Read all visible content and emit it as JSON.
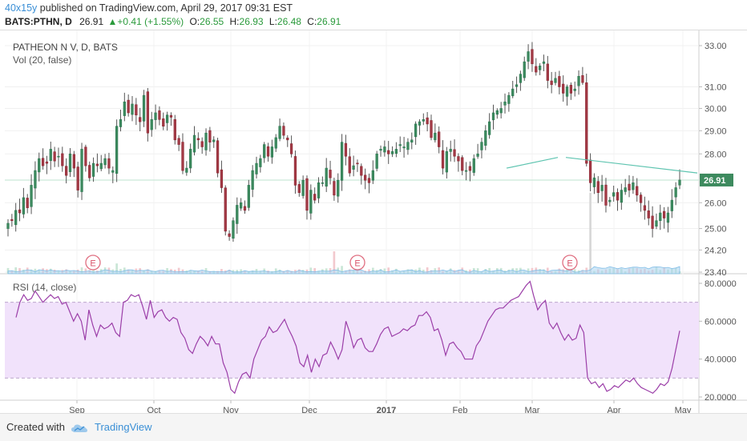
{
  "header": {
    "user": "40x15y",
    "published_text": " published on TradingView.com, April 29, 2017 09:31 EST",
    "symbol": "BATS:PTHN, D",
    "last": "26.91",
    "change": "+0.41 (+1.55%)",
    "open_label": "O:",
    "open": "26.55",
    "high_label": "H:",
    "high": "26.93",
    "low_label": "L:",
    "low": "26.48",
    "close_label": "C:",
    "close": "26.91"
  },
  "footer": {
    "created_with": "Created with",
    "brand": "TradingView"
  },
  "chart_data": [
    {
      "type": "candlestick",
      "title": "PATHEON N V, D, BATS",
      "volume_label": "Vol (20, false)",
      "y_ticks": [
        23.4,
        24.2,
        25.0,
        26.0,
        28.0,
        29.0,
        30.0,
        31.0,
        33.0
      ],
      "ylim": [
        23.4,
        33.0
      ],
      "scale": "log",
      "last_price": 26.91,
      "x_ticks": [
        "Sep",
        "Oct",
        "Nov",
        "Dec",
        "2017",
        "Feb",
        "Mar",
        "Apr",
        "May"
      ],
      "earnings_markers": [
        "E",
        "E",
        "E"
      ],
      "trendline_start": 27.4,
      "trendline_end": 27.85,
      "resistance_start": 27.85,
      "resistance_end": 27.2,
      "closes": [
        25.2,
        25.3,
        25.7,
        25.6,
        26.2,
        25.8,
        26.7,
        27.3,
        27.8,
        27.5,
        27.6,
        28.2,
        27.7,
        27.9,
        27.5,
        27.1,
        28.0,
        27.4,
        26.5,
        28.2,
        27.5,
        27.0,
        27.6,
        27.5,
        27.6,
        27.8,
        27.4,
        27.3,
        29.2,
        29.5,
        30.3,
        29.8,
        30.2,
        29.7,
        29.4,
        30.6,
        28.9,
        29.5,
        29.8,
        29.5,
        29.2,
        29.7,
        29.6,
        28.6,
        28.4,
        27.3,
        27.4,
        28.2,
        28.8,
        28.6,
        28.3,
        28.9,
        28.5,
        28.6,
        27.2,
        26.6,
        24.9,
        24.7,
        25.3,
        25.9,
        26.0,
        25.7,
        26.7,
        27.3,
        27.6,
        27.8,
        28.4,
        27.9,
        28.3,
        28.7,
        29.2,
        28.8,
        28.6,
        28.0,
        26.7,
        26.4,
        26.9,
        25.7,
        26.5,
        26.1,
        26.8,
        26.8,
        27.4,
        27.0,
        26.3,
        26.9,
        28.5,
        27.9,
        27.2,
        27.5,
        27.6,
        27.1,
        26.9,
        26.8,
        27.3,
        28.0,
        28.2,
        28.3,
        28.0,
        28.1,
        28.2,
        28.4,
        28.3,
        28.5,
        28.6,
        29.3,
        29.4,
        29.5,
        29.3,
        28.7,
        28.9,
        28.3,
        27.4,
        28.1,
        28.2,
        27.9,
        27.7,
        27.3,
        27.3,
        27.3,
        27.8,
        28.0,
        28.5,
        29.0,
        29.4,
        29.8,
        29.9,
        30.0,
        30.3,
        30.6,
        30.9,
        31.1,
        31.6,
        32.2,
        32.7,
        32.1,
        31.7,
        32.0,
        32.2,
        31.3,
        31.1,
        31.4,
        31.0,
        30.7,
        31.0,
        30.7,
        30.9,
        31.5,
        31.2,
        27.6,
        26.8,
        27.0,
        26.4,
        26.7,
        25.9,
        26.1,
        26.4,
        26.1,
        26.5,
        26.6,
        26.5,
        26.8,
        26.3,
        26.0,
        25.7,
        25.4,
        25.0,
        25.3,
        25.6,
        25.4,
        25.6,
        26.1,
        26.6,
        26.91
      ],
      "rsi": {
        "label": "RSI (14, close)",
        "y_ticks": [
          20.0,
          40.0,
          60.0,
          80.0
        ],
        "ylim": [
          18,
          83
        ],
        "band": [
          30,
          70
        ],
        "values": [
          62,
          70,
          74,
          71,
          72,
          76,
          73,
          70,
          72,
          74,
          72,
          73,
          69,
          70,
          65,
          60,
          64,
          60,
          50,
          66,
          58,
          52,
          58,
          56,
          57,
          59,
          54,
          52,
          70,
          71,
          74,
          73,
          74,
          68,
          61,
          71,
          62,
          65,
          66,
          62,
          60,
          62,
          61,
          54,
          51,
          45,
          43,
          48,
          52,
          50,
          47,
          52,
          48,
          48,
          38,
          33,
          24,
          22,
          28,
          32,
          33,
          30,
          40,
          45,
          50,
          52,
          57,
          54,
          55,
          58,
          61,
          56,
          52,
          47,
          38,
          36,
          42,
          33,
          40,
          36,
          42,
          43,
          49,
          45,
          40,
          45,
          60,
          54,
          46,
          50,
          51,
          46,
          44,
          44,
          48,
          53,
          56,
          57,
          52,
          53,
          54,
          56,
          55,
          57,
          58,
          63,
          63,
          65,
          62,
          55,
          56,
          50,
          42,
          48,
          49,
          46,
          44,
          40,
          40,
          40,
          47,
          50,
          55,
          60,
          63,
          66,
          67,
          67,
          69,
          71,
          72,
          73,
          76,
          79,
          81,
          73,
          66,
          69,
          71,
          59,
          56,
          59,
          54,
          50,
          53,
          50,
          51,
          58,
          54,
          30,
          27,
          28,
          25,
          27,
          23,
          24,
          26,
          25,
          27,
          29,
          28,
          30,
          27,
          25,
          24,
          23,
          22,
          24,
          27,
          26,
          28,
          35,
          45,
          55
        ]
      }
    }
  ]
}
